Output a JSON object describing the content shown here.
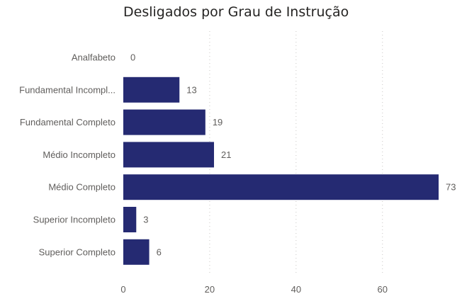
{
  "chart_data": {
    "type": "bar",
    "orientation": "horizontal",
    "title": "Desligados por Grau de Instrução",
    "categories": [
      "Analfabeto",
      "Fundamental Incompl...",
      "Fundamental Completo",
      "Médio Incompleto",
      "Médio Completo",
      "Superior Incompleto",
      "Superior Completo"
    ],
    "values": [
      0,
      13,
      19,
      21,
      73,
      3,
      6
    ],
    "xlim": [
      0,
      73
    ],
    "xticks": [
      0,
      20,
      40,
      60
    ],
    "grid": true,
    "bar_color": "#252a72"
  }
}
